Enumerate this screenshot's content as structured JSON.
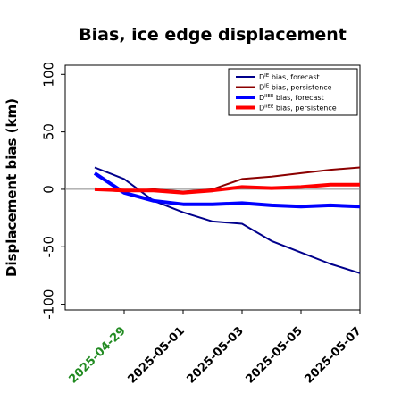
{
  "chart_data": {
    "type": "line",
    "title": "Bias, ice edge displacement",
    "xlabel": "",
    "ylabel": "Displacement bias (km)",
    "x": [
      "2025-04-28",
      "2025-04-29",
      "2025-04-30",
      "2025-05-01",
      "2025-05-02",
      "2025-05-03",
      "2025-05-04",
      "2025-05-05",
      "2025-05-06",
      "2025-05-07"
    ],
    "xticks": [
      "2025-04-29",
      "2025-05-01",
      "2025-05-03",
      "2025-05-05",
      "2025-05-07"
    ],
    "xtick_colors": {
      "2025-04-29": "#228B22"
    },
    "xlim": [
      "2025-04-27",
      "2025-05-07"
    ],
    "ylim": [
      -105,
      108
    ],
    "yticks": [
      100,
      50,
      0,
      -50,
      -100
    ],
    "zero_line": true,
    "grid": false,
    "legend": "top-right",
    "series": [
      {
        "name": "D",
        "name_sup": "IE",
        "name_rest": " bias, forecast",
        "color": "#00008B",
        "width": 2,
        "values": [
          19,
          9,
          -10,
          -20,
          -28,
          -30,
          -45,
          -55,
          -65,
          -73
        ]
      },
      {
        "name": "D",
        "name_sup": "IE",
        "name_rest": " bias, persistence",
        "color": "#8B0000",
        "width": 2,
        "values": [
          0,
          -2,
          0,
          -2,
          0,
          9,
          11,
          14,
          17,
          19
        ]
      },
      {
        "name": "D",
        "name_sup": "IIEE",
        "name_rest": " bias, forecast",
        "color": "#0000FF",
        "width": 4,
        "values": [
          14,
          -3,
          -10,
          -13,
          -13,
          -12,
          -14,
          -15,
          -14,
          -15
        ]
      },
      {
        "name": "D",
        "name_sup": "IIEE",
        "name_rest": " bias, persistence",
        "color": "#FF0000",
        "width": 4,
        "values": [
          0,
          -1,
          -1,
          -3,
          -1,
          2,
          1,
          2,
          4,
          4
        ]
      }
    ]
  }
}
